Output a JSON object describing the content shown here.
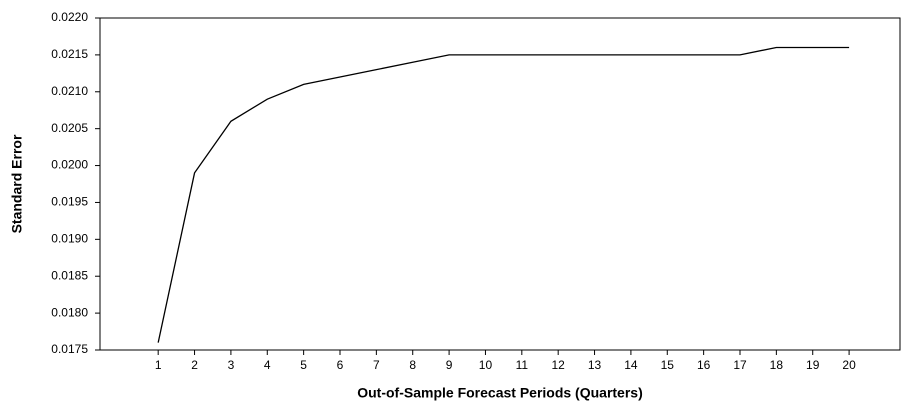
{
  "chart_data": {
    "type": "line",
    "x_label": "Out-of-Sample Forecast Periods (Quarters)",
    "y_label": "Standard Error",
    "x": [
      1,
      2,
      3,
      4,
      5,
      6,
      7,
      8,
      9,
      10,
      11,
      12,
      13,
      14,
      15,
      16,
      17,
      18,
      19,
      20
    ],
    "series": [
      {
        "color": "#000000",
        "values": [
          0.0176,
          0.0199,
          0.0206,
          0.0209,
          0.0211,
          0.0212,
          0.0213,
          0.0214,
          0.0215,
          0.0215,
          0.0215,
          0.0215,
          0.0215,
          0.0215,
          0.0215,
          0.0215,
          0.0215,
          0.0216,
          0.0216,
          0.0216
        ]
      }
    ],
    "xlim": [
      -0.6,
      21.4
    ],
    "xticks": [
      1,
      2,
      3,
      4,
      5,
      6,
      7,
      8,
      9,
      10,
      11,
      12,
      13,
      14,
      15,
      16,
      17,
      18,
      19,
      20
    ],
    "ylim": [
      0.0175,
      0.022
    ],
    "yticks": [
      {
        "value": 0.0175,
        "label": "0.0175"
      },
      {
        "value": 0.018,
        "label": "0.0180"
      },
      {
        "value": 0.0185,
        "label": "0.0185"
      },
      {
        "value": 0.019,
        "label": "0.0190"
      },
      {
        "value": 0.0195,
        "label": "0.0195"
      },
      {
        "value": 0.02,
        "label": "0.0200"
      },
      {
        "value": 0.0205,
        "label": "0.0205"
      },
      {
        "value": 0.021,
        "label": "0.0210"
      },
      {
        "value": 0.0215,
        "label": "0.0215"
      },
      {
        "value": 0.022,
        "label": "0.0220"
      }
    ],
    "grid": false
  }
}
